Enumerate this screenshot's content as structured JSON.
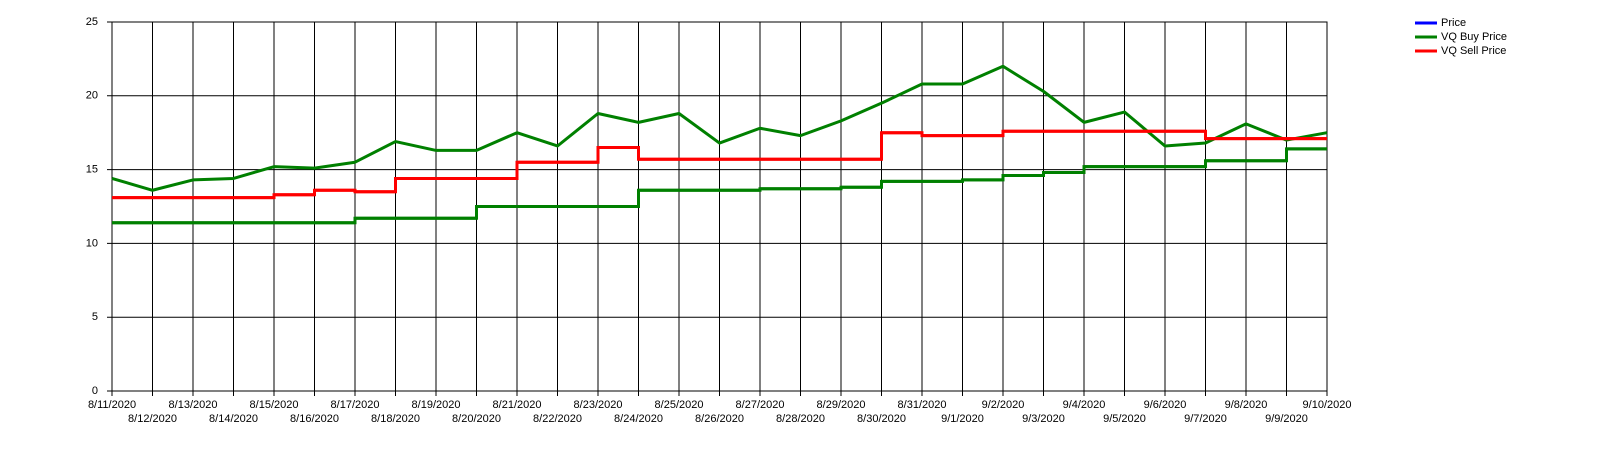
{
  "chart_data": {
    "type": "line",
    "x": [
      "8/11/2020",
      "8/12/2020",
      "8/13/2020",
      "8/14/2020",
      "8/15/2020",
      "8/16/2020",
      "8/17/2020",
      "8/18/2020",
      "8/19/2020",
      "8/20/2020",
      "8/21/2020",
      "8/22/2020",
      "8/23/2020",
      "8/24/2020",
      "8/25/2020",
      "8/26/2020",
      "8/27/2020",
      "8/28/2020",
      "8/29/2020",
      "8/30/2020",
      "8/31/2020",
      "9/1/2020",
      "9/2/2020",
      "9/3/2020",
      "9/4/2020",
      "9/5/2020",
      "9/6/2020",
      "9/7/2020",
      "9/8/2020",
      "9/9/2020",
      "9/10/2020"
    ],
    "series": [
      {
        "name": "Price",
        "color": "#0000ff",
        "line_color": "#008000",
        "values": [
          14.4,
          13.6,
          14.3,
          14.4,
          15.2,
          15.1,
          15.5,
          16.9,
          16.3,
          16.3,
          17.5,
          16.6,
          18.8,
          18.2,
          18.8,
          16.8,
          17.8,
          17.3,
          18.3,
          19.5,
          20.8,
          20.8,
          22.0,
          20.3,
          18.2,
          18.9,
          16.6,
          16.8,
          18.1,
          17.0,
          17.5
        ]
      },
      {
        "name": "VQ Buy Price",
        "color": "#008000",
        "step": true,
        "values": [
          11.4,
          11.4,
          11.4,
          11.4,
          11.4,
          11.4,
          11.7,
          11.7,
          11.7,
          12.5,
          12.5,
          12.5,
          12.5,
          13.6,
          13.6,
          13.6,
          13.7,
          13.7,
          13.8,
          14.2,
          14.2,
          14.3,
          14.6,
          14.8,
          15.2,
          15.2,
          15.2,
          15.6,
          15.6,
          16.4,
          16.4
        ]
      },
      {
        "name": "VQ Sell Price",
        "color": "#ff0000",
        "step": true,
        "values": [
          13.1,
          13.1,
          13.1,
          13.1,
          13.3,
          13.6,
          13.5,
          14.4,
          14.4,
          14.4,
          15.5,
          15.5,
          16.5,
          15.7,
          15.7,
          15.7,
          15.7,
          15.7,
          15.7,
          17.5,
          17.3,
          17.3,
          17.6,
          17.6,
          17.6,
          17.6,
          17.6,
          17.1,
          17.1,
          17.1,
          17.1
        ]
      }
    ],
    "ylim": [
      0,
      25
    ],
    "yticks": [
      0,
      5,
      10,
      15,
      20,
      25
    ],
    "grid": true,
    "legend": "top-right"
  }
}
